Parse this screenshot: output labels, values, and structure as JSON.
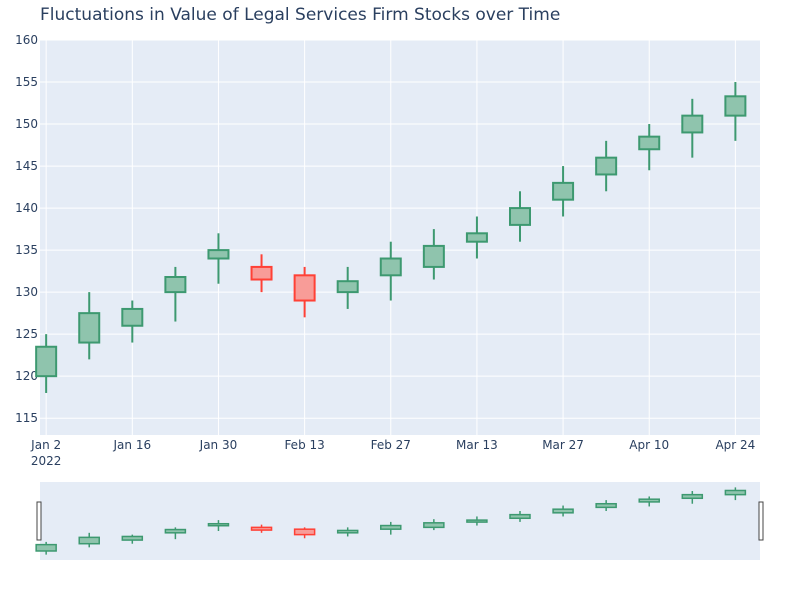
{
  "chart_data": {
    "type": "candlestick",
    "title": "Fluctuations in Value of Legal Services Firm Stocks over Time",
    "xlabel": "",
    "ylabel": "",
    "ylim": [
      113,
      160
    ],
    "yticks": [
      115,
      120,
      125,
      130,
      135,
      140,
      145,
      150,
      155,
      160
    ],
    "xticks": [
      {
        "date": "2022-01-02",
        "label": "Jan 2",
        "sublabel": "2022"
      },
      {
        "date": "2022-01-16",
        "label": "Jan 16"
      },
      {
        "date": "2022-01-30",
        "label": "Jan 30"
      },
      {
        "date": "2022-02-13",
        "label": "Feb 13"
      },
      {
        "date": "2022-02-27",
        "label": "Feb 27"
      },
      {
        "date": "2022-03-13",
        "label": "Mar 13"
      },
      {
        "date": "2022-03-27",
        "label": "Mar 27"
      },
      {
        "date": "2022-04-10",
        "label": "Apr 10"
      },
      {
        "date": "2022-04-24",
        "label": "Apr 24"
      }
    ],
    "xrange": [
      "2022-01-01",
      "2022-04-28"
    ],
    "grid": true,
    "rangeslider": true,
    "colors": {
      "increasing_line": "#3d9970",
      "increasing_fill": "#8fc4ad",
      "decreasing_line": "#ff4136",
      "decreasing_fill": "#f89c98",
      "plot_bg": "#e5ecf6",
      "grid": "#ffffff",
      "text": "#2a3f5f"
    },
    "series": [
      {
        "date": "2022-01-02",
        "open": 120,
        "high": 125,
        "low": 118,
        "close": 123.5
      },
      {
        "date": "2022-01-09",
        "open": 124,
        "high": 130,
        "low": 122,
        "close": 127.5
      },
      {
        "date": "2022-01-16",
        "open": 126,
        "high": 129,
        "low": 124,
        "close": 128
      },
      {
        "date": "2022-01-23",
        "open": 130,
        "high": 133,
        "low": 126.5,
        "close": 131.8
      },
      {
        "date": "2022-01-30",
        "open": 134,
        "high": 137,
        "low": 131,
        "close": 135
      },
      {
        "date": "2022-02-06",
        "open": 133,
        "high": 134.5,
        "low": 130,
        "close": 131.5
      },
      {
        "date": "2022-02-13",
        "open": 132,
        "high": 133,
        "low": 127,
        "close": 129
      },
      {
        "date": "2022-02-20",
        "open": 130,
        "high": 133,
        "low": 128,
        "close": 131.3
      },
      {
        "date": "2022-02-27",
        "open": 132,
        "high": 136,
        "low": 129,
        "close": 134
      },
      {
        "date": "2022-03-06",
        "open": 133,
        "high": 137.5,
        "low": 131.5,
        "close": 135.5
      },
      {
        "date": "2022-03-13",
        "open": 136,
        "high": 139,
        "low": 134,
        "close": 137
      },
      {
        "date": "2022-03-20",
        "open": 138,
        "high": 142,
        "low": 136,
        "close": 140
      },
      {
        "date": "2022-03-27",
        "open": 141,
        "high": 145,
        "low": 139,
        "close": 143
      },
      {
        "date": "2022-04-03",
        "open": 144,
        "high": 148,
        "low": 142,
        "close": 146
      },
      {
        "date": "2022-04-10",
        "open": 147,
        "high": 150,
        "low": 144.5,
        "close": 148.5
      },
      {
        "date": "2022-04-17",
        "open": 149,
        "high": 153,
        "low": 146,
        "close": 151
      },
      {
        "date": "2022-04-24",
        "open": 151,
        "high": 155,
        "low": 148,
        "close": 153.3
      }
    ]
  }
}
